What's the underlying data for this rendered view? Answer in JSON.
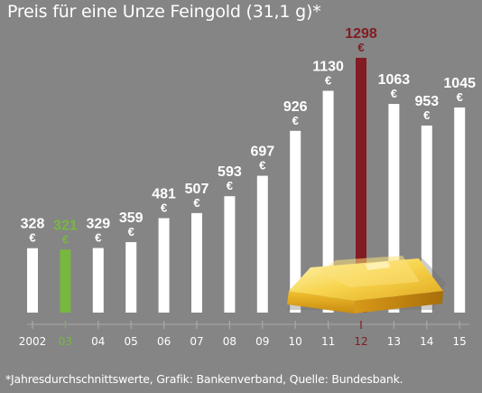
{
  "title": "Preis für eine Unze Feingold (31,1 g)*",
  "footnote": "*Jahresdurchschnittswerte, Grafik: Bankenverband, Quelle: Bundesbank.",
  "colors": {
    "background": "#858585",
    "bar": "#ffffff",
    "highlight_low": "#77b83f",
    "highlight_high": "#821c22",
    "text": "#ffffff"
  },
  "chart_data": {
    "type": "bar",
    "title": "Preis für eine Unze Feingold (31,1 g)*",
    "xlabel": "",
    "ylabel": "",
    "unit": "€",
    "categories": [
      "2002",
      "03",
      "04",
      "05",
      "06",
      "07",
      "08",
      "09",
      "10",
      "11",
      "12",
      "13",
      "14",
      "15"
    ],
    "values": [
      328,
      321,
      329,
      359,
      481,
      507,
      593,
      697,
      926,
      1130,
      1298,
      1063,
      953,
      1045
    ],
    "value_labels": [
      "328",
      "321",
      "329",
      "359",
      "481",
      "507",
      "593",
      "697",
      "926",
      "1130",
      "1298",
      "1063",
      "953",
      "1045"
    ],
    "highlight": {
      "low_index": 1,
      "high_index": 10
    },
    "ylim": [
      0,
      1298
    ],
    "grid": false,
    "illustration": "gold-bar-icon"
  }
}
